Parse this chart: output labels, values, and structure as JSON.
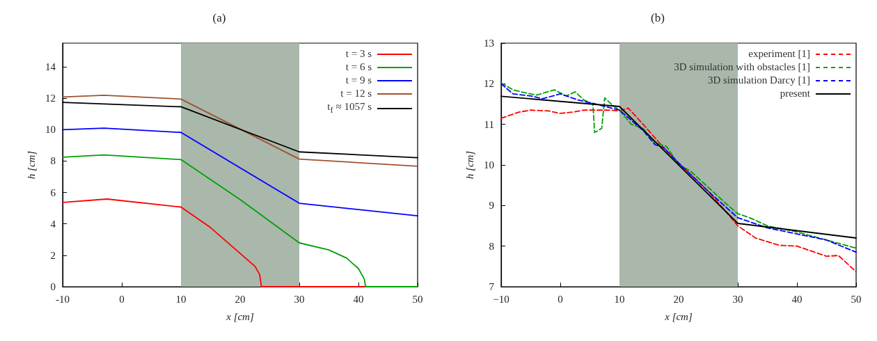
{
  "chart_data": [
    {
      "type": "line",
      "title": "(a)",
      "xlabel": "x [cm]",
      "ylabel": "h [cm]",
      "xlim": [
        -10,
        50
      ],
      "xticks": [
        -10,
        0,
        10,
        20,
        30,
        40,
        50
      ],
      "ylim": [
        0,
        15.5
      ],
      "yticks": [
        0,
        2,
        4,
        6,
        8,
        10,
        12,
        14
      ],
      "grid": false,
      "legend": "top right",
      "marker": "none",
      "line_style": "solid",
      "bands": [
        {
          "axis": "x",
          "from": 10,
          "to": 30,
          "color": "#a9b8ab"
        }
      ],
      "series": [
        {
          "name": "t =   3 s",
          "color": "#ff0000",
          "x": [
            -10,
            -2.5,
            10,
            15,
            20,
            22.5,
            23.3,
            23.6,
            50
          ],
          "values": [
            5.36,
            5.58,
            5.07,
            3.76,
            2.12,
            1.3,
            0.78,
            0,
            0
          ]
        },
        {
          "name": "t =   6 s",
          "color": "#00a000",
          "x": [
            -10,
            -3,
            10,
            20,
            30,
            35,
            38,
            40,
            41,
            41.2,
            50
          ],
          "values": [
            8.24,
            8.39,
            8.09,
            5.55,
            2.79,
            2.34,
            1.82,
            1.15,
            0.48,
            0,
            0
          ]
        },
        {
          "name": "t =   9 s",
          "color": "#0000ff",
          "x": [
            -10,
            -3,
            10,
            30,
            50
          ],
          "values": [
            9.99,
            10.09,
            9.82,
            5.31,
            4.51
          ]
        },
        {
          "name": "t = 12 s",
          "color": "#a0522d",
          "x": [
            -10,
            -3,
            10,
            30,
            50
          ],
          "values": [
            12.07,
            12.18,
            11.94,
            8.12,
            7.67
          ]
        },
        {
          "name": "t$_{f}$ ≈ 1057 s",
          "color": "#000000",
          "x": [
            -10,
            10,
            30,
            50
          ],
          "values": [
            11.73,
            11.45,
            8.58,
            8.21
          ]
        }
      ]
    },
    {
      "type": "line",
      "title": "(b)",
      "xlabel": "x [cm]",
      "ylabel": "h [cm]",
      "xlim": [
        -10,
        50
      ],
      "xticks": [
        {
          "value": -10,
          "label": "−10"
        },
        0,
        10,
        20,
        30,
        40,
        50
      ],
      "ylim": [
        7,
        13
      ],
      "yticks": [
        7,
        8,
        9,
        10,
        11,
        12,
        13
      ],
      "grid": false,
      "legend": "top right",
      "marker": "none",
      "bands": [
        {
          "axis": "x",
          "from": 10,
          "to": 30,
          "color": "#a9b8ab"
        }
      ],
      "series": [
        {
          "name": "experiment [1]",
          "color": "#ff0000",
          "line_style": "dashed",
          "x": [
            -10,
            -7,
            -5,
            -2,
            0,
            2,
            4,
            8,
            10,
            11.5,
            14,
            17,
            20,
            25,
            28,
            30,
            33,
            37,
            40,
            43,
            45,
            47,
            50
          ],
          "values": [
            11.15,
            11.3,
            11.35,
            11.33,
            11.27,
            11.3,
            11.35,
            11.35,
            11.33,
            11.4,
            11.0,
            10.5,
            10.05,
            9.35,
            8.85,
            8.5,
            8.2,
            8.02,
            8.0,
            7.85,
            7.75,
            7.77,
            7.37
          ]
        },
        {
          "name": "3D simulation with obstacles [1]",
          "color": "#00a000",
          "line_style": "dashed",
          "x": [
            -10,
            -8,
            -6,
            -4,
            -1,
            1,
            2.5,
            4,
            5.5,
            5.8,
            7,
            7.5,
            9,
            10,
            12,
            14,
            16,
            18,
            20,
            22,
            25,
            28,
            30,
            32,
            35,
            40,
            45,
            50
          ],
          "values": [
            12.02,
            11.85,
            11.78,
            11.72,
            11.85,
            11.7,
            11.8,
            11.6,
            11.5,
            10.8,
            10.9,
            11.65,
            11.45,
            11.35,
            11.0,
            10.9,
            10.55,
            10.45,
            10.0,
            9.85,
            9.45,
            9.05,
            8.8,
            8.7,
            8.5,
            8.35,
            8.15,
            7.95
          ]
        },
        {
          "name": "3D simulation Darcy [1]",
          "color": "#0000ff",
          "line_style": "dashed",
          "x": [
            -10,
            -8,
            -5,
            -3,
            0,
            3,
            6,
            10,
            14,
            16,
            17.5,
            20,
            25,
            30,
            35,
            40,
            45,
            50
          ],
          "values": [
            12.0,
            11.75,
            11.7,
            11.63,
            11.75,
            11.6,
            11.5,
            11.35,
            10.85,
            10.5,
            10.42,
            10.05,
            9.35,
            8.7,
            8.45,
            8.3,
            8.15,
            7.85
          ]
        },
        {
          "name": "present",
          "color": "#000000",
          "line_style": "solid",
          "x": [
            -10,
            10,
            30,
            50
          ],
          "values": [
            11.69,
            11.44,
            8.56,
            8.2
          ]
        }
      ]
    }
  ]
}
